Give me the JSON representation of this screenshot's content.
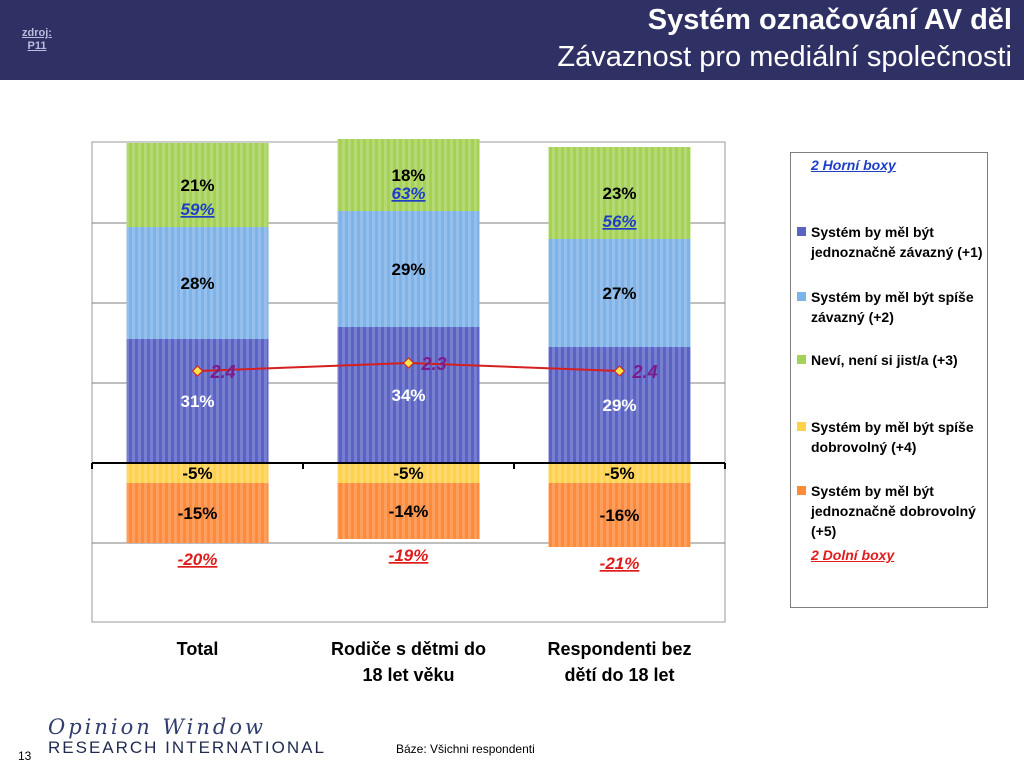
{
  "header": {
    "source_label": "zdroj:",
    "source_value": "P11",
    "title_line1": "Systém označování AV děl",
    "title_line2": "Závaznost pro mediální společnosti"
  },
  "chart_data": {
    "type": "bar",
    "stacked": true,
    "categories": [
      "Total",
      "Rodiče s dětmi do 18 let věku",
      "Respondenti bez dětí do 18 let"
    ],
    "category_lines": [
      [
        "Total"
      ],
      [
        "Rodiče s dětmi do",
        "18 let věku"
      ],
      [
        "Respondenti bez",
        "dětí do 18 let"
      ]
    ],
    "series": [
      {
        "name": "Systém by měl být jednoznačně závazný (+1)",
        "values": [
          31,
          34,
          29
        ],
        "labels": [
          "31%",
          "34%",
          "29%"
        ],
        "color": "#5a62c6"
      },
      {
        "name": "Systém by měl být spíše závazný (+2)",
        "values": [
          28,
          29,
          27
        ],
        "labels": [
          "28%",
          "29%",
          "27%"
        ],
        "color": "#7fb2e6"
      },
      {
        "name": "Neví, není si jist/a (+3)",
        "values": [
          21,
          18,
          23
        ],
        "labels": [
          "21%",
          "18%",
          "23%"
        ],
        "color": "#a5d255"
      },
      {
        "name": "Systém by měl být spíše dobrovolný (+4)",
        "values": [
          -5,
          -5,
          -5
        ],
        "labels": [
          "-5%",
          "-5%",
          "-5%"
        ],
        "color": "#ffd24a"
      },
      {
        "name": "Systém by měl být jednoznačně dobrovolný (+5)",
        "values": [
          -15,
          -14,
          -16
        ],
        "labels": [
          "-15%",
          "-14%",
          "-16%"
        ],
        "color": "#ff8a3a"
      }
    ],
    "top2": {
      "name": "2 Horní boxy",
      "values": [
        59,
        63,
        56
      ],
      "labels": [
        "59%",
        "63%",
        "56%"
      ],
      "color": "#1f3fc6"
    },
    "bottom2": {
      "name": "2 Dolní boxy",
      "values": [
        -20,
        -19,
        -21
      ],
      "labels": [
        "-20%",
        "-19%",
        "-21%"
      ],
      "color": "#e01b1b"
    },
    "mean": {
      "values": [
        2.4,
        2.3,
        2.4
      ],
      "labels": [
        "2.4",
        "2.3",
        "2.4"
      ],
      "color": "#d61f1f",
      "label_color": "#7a1d8c"
    },
    "ylim": [
      -41,
      79
    ],
    "grid": true,
    "legend_position": "right"
  },
  "footer": {
    "base": "Báze: Všichni respondenti",
    "page_number": "13",
    "logo_line1": "Opinion Window",
    "logo_line2": "RESEARCH INTERNATIONAL"
  }
}
